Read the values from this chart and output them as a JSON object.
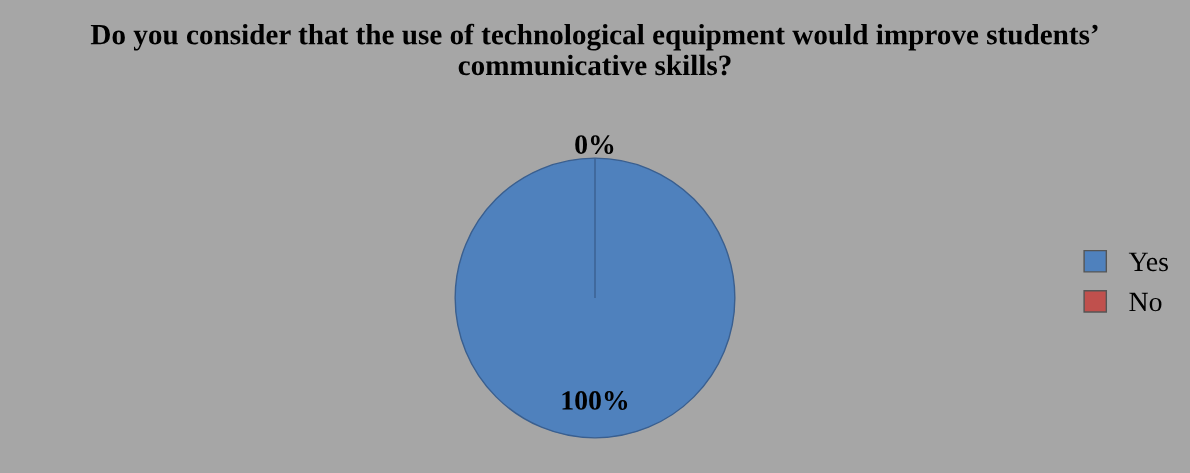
{
  "chart_data": {
    "type": "pie",
    "title": "Do you consider that the use of technological equipment would improve students’ communicative skills?",
    "categories": [
      "Yes",
      "No"
    ],
    "values": [
      100,
      0
    ],
    "colors": [
      "#4f81bd",
      "#c0504d"
    ],
    "value_labels": [
      "100%",
      "0%"
    ],
    "legend": "right"
  }
}
